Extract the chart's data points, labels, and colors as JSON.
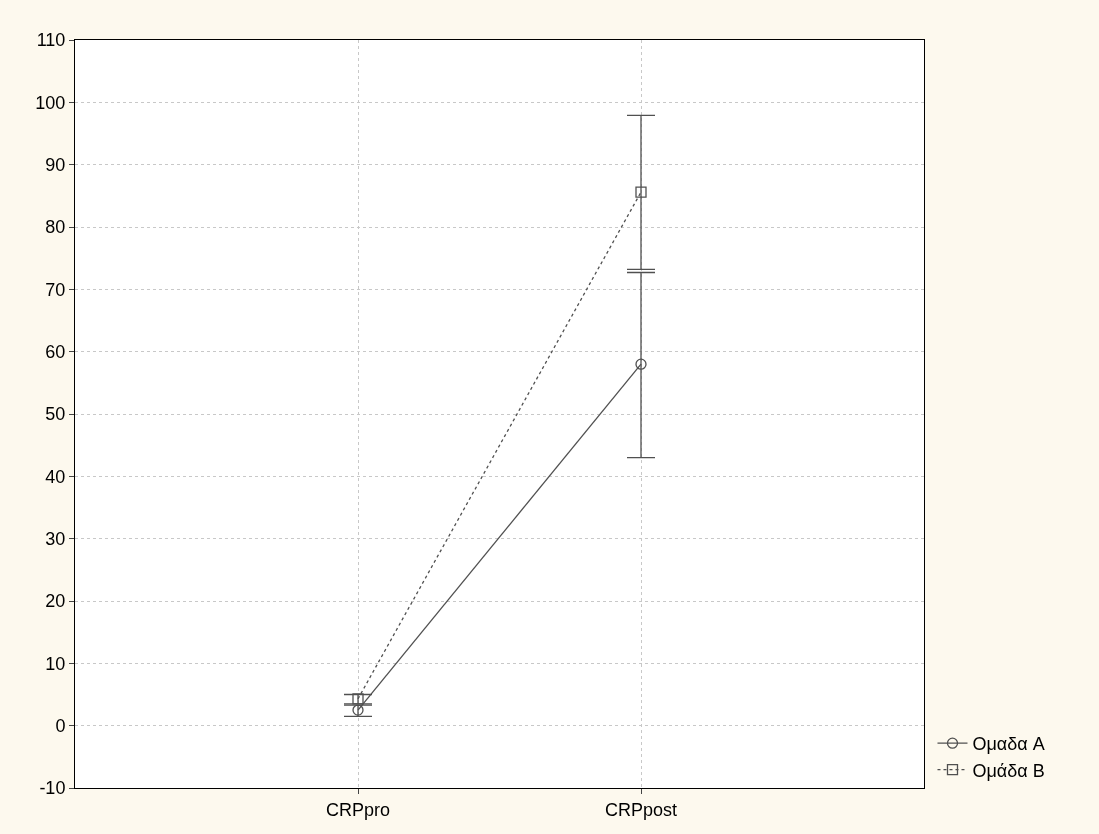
{
  "chart_data": {
    "type": "line",
    "categories": [
      "CRPpro",
      "CRPpost"
    ],
    "series": [
      {
        "name": "Ομαδα A",
        "color": "#505050",
        "values": [
          2.5,
          58
        ],
        "errors": [
          [
            1.5,
            3.3
          ],
          [
            43,
            72.7
          ]
        ],
        "marker": "circle",
        "line_style": "solid"
      },
      {
        "name": "Ομάδα B",
        "color": "#505050",
        "values": [
          4.3,
          85.6
        ],
        "errors": [
          [
            3.5,
            5.0
          ],
          [
            73.2,
            97.9
          ]
        ],
        "marker": "square",
        "line_style": "dotted"
      }
    ],
    "ylim": [
      -10,
      110
    ],
    "yticks": [
      -10,
      0,
      10,
      20,
      30,
      40,
      50,
      60,
      70,
      80,
      90,
      100,
      110
    ],
    "grid": true,
    "legend": "bottom right"
  }
}
